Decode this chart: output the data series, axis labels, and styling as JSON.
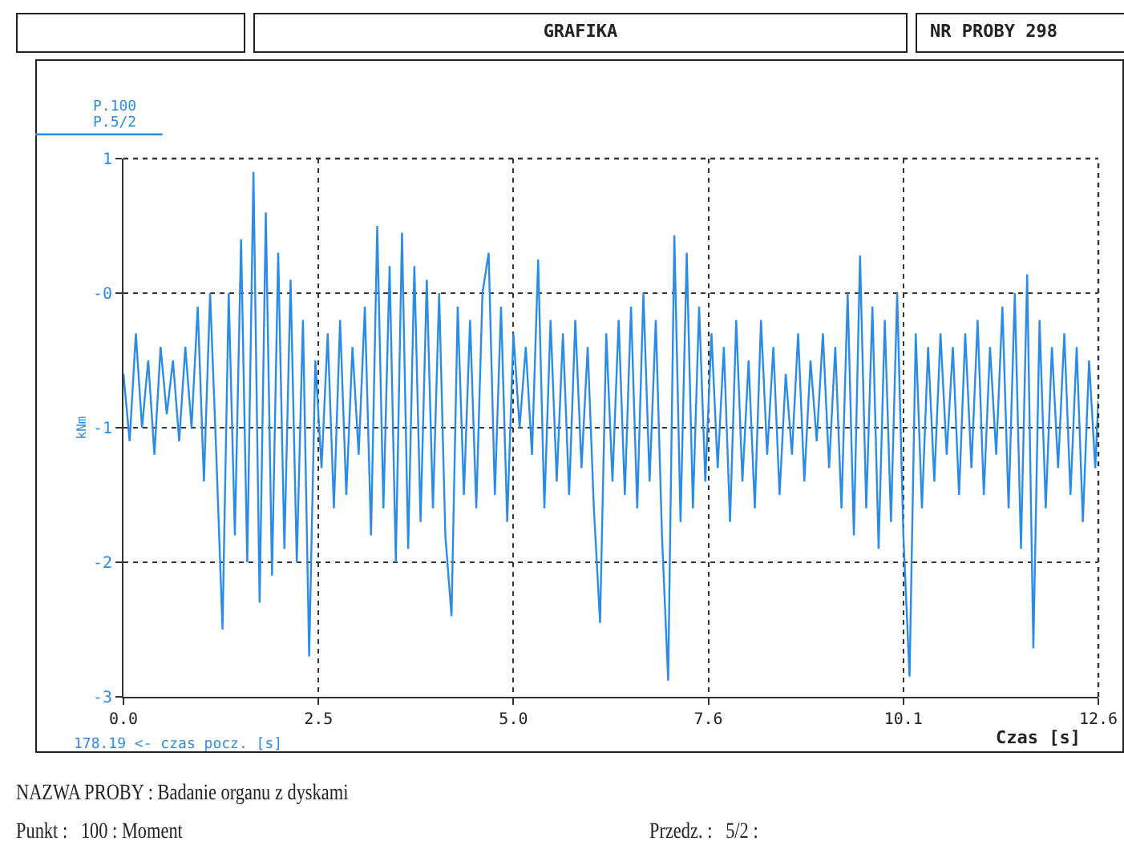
{
  "chart_data": {
    "type": "line",
    "title": "GRAFIKA",
    "subtitle": "NR PROBY 298",
    "xlabel": "Czas [s]",
    "ylabel": "kNm",
    "annotations": [
      "P.100",
      "P.5/2",
      "178.19 <- czas pocz. [s]",
      "NAZWA PROBY : Badanie organu z dyskami",
      "Punkt :   100 : Moment",
      "Przedz. :   5/2 :"
    ],
    "series": [
      {
        "color": "#2b8ce8",
        "x": [
          0,
          0.08,
          0.16,
          0.24,
          0.32,
          0.4,
          0.48,
          0.56,
          0.64,
          0.72,
          0.8,
          0.88,
          0.96,
          1.04,
          1.12,
          1.2,
          1.28,
          1.36,
          1.44,
          1.52,
          1.6,
          1.68,
          1.76,
          1.84,
          1.92,
          2.0,
          2.08,
          2.16,
          2.24,
          2.32,
          2.4,
          2.48,
          2.56,
          2.64,
          2.72,
          2.8,
          2.88,
          2.96,
          3.04,
          3.12,
          3.2,
          3.28,
          3.36,
          3.44,
          3.52,
          3.6,
          3.68,
          3.76,
          3.84,
          3.92,
          4.0,
          4.08,
          4.16,
          4.24,
          4.32,
          4.4,
          4.48,
          4.56,
          4.64,
          4.72,
          4.8,
          4.88,
          4.96,
          5.04,
          5.12,
          5.2,
          5.28,
          5.36,
          5.44,
          5.52,
          5.6,
          5.68,
          5.76,
          5.84,
          5.92,
          6.0,
          6.08,
          6.16,
          6.24,
          6.32,
          6.4,
          6.48,
          6.56,
          6.64,
          6.72,
          6.8,
          6.88,
          6.96,
          7.04,
          7.12,
          7.2,
          7.28,
          7.36,
          7.44,
          7.52,
          7.6,
          7.68,
          7.76,
          7.84,
          7.92,
          8.0,
          8.08,
          8.16,
          8.24,
          8.32,
          8.4,
          8.48,
          8.56,
          8.64,
          8.72,
          8.8,
          8.88,
          8.96,
          9.04,
          9.12,
          9.2,
          9.28,
          9.36,
          9.44,
          9.52,
          9.6,
          9.68,
          9.76,
          9.84,
          9.92,
          10.0,
          10.08,
          10.16,
          10.24,
          10.32,
          10.4,
          10.48,
          10.56,
          10.64,
          10.72,
          10.8,
          10.88,
          10.96,
          11.04,
          11.12,
          11.2,
          11.28,
          11.36,
          11.44,
          11.52,
          11.6,
          11.68,
          11.76,
          11.84,
          11.92,
          12.0,
          12.08,
          12.16,
          12.24,
          12.32,
          12.4,
          12.48,
          12.56,
          12.6
        ],
        "values": [
          -0.6,
          -1.1,
          -0.3,
          -1.0,
          -0.5,
          -1.2,
          -0.4,
          -0.9,
          -0.5,
          -1.1,
          -0.4,
          -1.0,
          -0.1,
          -1.4,
          0.0,
          -1.2,
          -2.5,
          0.0,
          -1.8,
          0.4,
          -2.0,
          0.9,
          -2.3,
          0.6,
          -2.1,
          0.3,
          -1.9,
          0.1,
          -2.0,
          -0.2,
          -2.7,
          -0.5,
          -1.3,
          -0.3,
          -1.6,
          -0.2,
          -1.5,
          -0.4,
          -1.2,
          -0.1,
          -1.8,
          0.5,
          -1.6,
          0.2,
          -2.0,
          0.45,
          -1.9,
          0.2,
          -1.7,
          0.1,
          -1.6,
          0.0,
          -1.8,
          -2.4,
          -0.1,
          -1.5,
          -0.2,
          -1.6,
          0.0,
          0.3,
          -1.5,
          -0.1,
          -1.7,
          -0.3,
          -1.0,
          -0.4,
          -1.2,
          0.25,
          -1.6,
          -0.2,
          -1.4,
          -0.3,
          -1.5,
          -0.2,
          -1.3,
          -0.4,
          -1.6,
          -2.45,
          -0.3,
          -1.4,
          -0.2,
          -1.5,
          -0.1,
          -1.6,
          0.0,
          -1.4,
          -0.2,
          -1.8,
          -2.88,
          0.43,
          -1.7,
          0.3,
          -1.6,
          -0.1,
          -1.4,
          -0.3,
          -1.3,
          -0.4,
          -1.7,
          -0.2,
          -1.4,
          -0.5,
          -1.6,
          -0.2,
          -1.2,
          -0.4,
          -1.5,
          -0.6,
          -1.2,
          -0.3,
          -1.4,
          -0.5,
          -1.1,
          -0.3,
          -1.3,
          -0.4,
          -1.6,
          0.0,
          -1.8,
          0.28,
          -1.6,
          -0.1,
          -1.9,
          -0.2,
          -1.7,
          0.0,
          -1.8,
          -2.85,
          -0.3,
          -1.6,
          -0.4,
          -1.4,
          -0.3,
          -1.2,
          -0.4,
          -1.5,
          -0.3,
          -1.3,
          -0.2,
          -1.5,
          -0.4,
          -1.2,
          -0.1,
          -1.6,
          0.0,
          -1.9,
          0.14,
          -2.64,
          -0.2,
          -1.6,
          -0.4,
          -1.3,
          -0.3,
          -1.5,
          -0.4,
          -1.7,
          -0.5,
          -1.3,
          -0.8
        ]
      }
    ],
    "xlim": [
      0,
      12.6
    ],
    "xticks": [
      {
        "value": 0,
        "label": "0.0"
      },
      {
        "value": 2.52,
        "label": "2.5"
      },
      {
        "value": 5.04,
        "label": "5.0"
      },
      {
        "value": 7.56,
        "label": "7.6"
      },
      {
        "value": 10.08,
        "label": "10.1"
      },
      12.6
    ],
    "ylim": [
      -3,
      1
    ],
    "yticks": [
      1,
      {
        "value": 0,
        "label": "-0"
      },
      -1,
      -2,
      -3
    ],
    "grid": true,
    "marker": "none",
    "line_style": "solid"
  }
}
